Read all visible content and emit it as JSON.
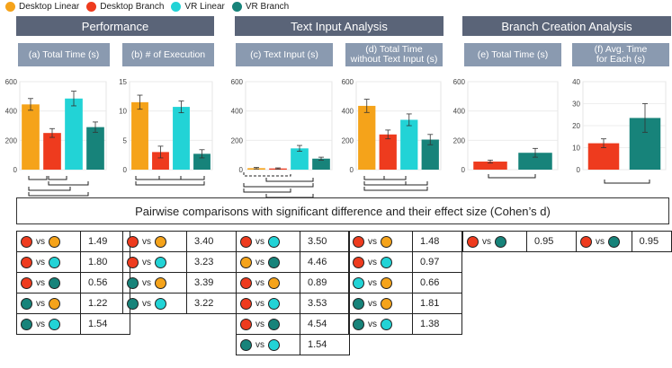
{
  "colors": {
    "desktop_linear": "#f5a31a",
    "desktop_branch": "#ee3b1e",
    "vr_linear": "#22d3d6",
    "vr_branch": "#17837a",
    "banner": "#5a6478",
    "panel_title": "#8a9ab0"
  },
  "legend": [
    {
      "label": "Desktop Linear",
      "color": "#f5a31a"
    },
    {
      "label": "Desktop Branch",
      "color": "#ee3b1e"
    },
    {
      "label": "VR Linear",
      "color": "#22d3d6"
    },
    {
      "label": "VR Branch",
      "color": "#17837a"
    }
  ],
  "groups": {
    "performance": "Performance",
    "text_input": "Text Input Analysis",
    "branch_creation": "Branch Creation Analysis"
  },
  "panels": {
    "a": "(a) Total Time (s)",
    "b": "(b) # of Execution",
    "c": "(c) Text Input (s)",
    "d_line1": "(d) Total Time",
    "d_line2": "without Text Input (s)",
    "e": "(e) Total Time (s)",
    "f_line1": "(f) Avg. Time",
    "f_line2": "for Each (s)"
  },
  "pairwise_title": "Pairwise comparisons with significant difference and their effect size (Cohen’s d)",
  "vs_label": "vs",
  "chart_data": [
    {
      "type": "bar",
      "title": "(a) Total Time (s)",
      "categories": [
        "Desktop Linear",
        "Desktop Branch",
        "VR Linear",
        "VR Branch"
      ],
      "values": [
        445,
        250,
        485,
        290
      ],
      "errors": [
        40,
        30,
        50,
        35
      ],
      "ylim": [
        0,
        600
      ],
      "yticks": [
        0,
        200,
        400,
        600
      ]
    },
    {
      "type": "bar",
      "title": "(b) # of Execution",
      "categories": [
        "Desktop Linear",
        "Desktop Branch",
        "VR Linear",
        "VR Branch"
      ],
      "values": [
        11.5,
        3,
        10.7,
        2.7
      ],
      "errors": [
        1.2,
        1.0,
        1.0,
        0.7
      ],
      "ylim": [
        0,
        15
      ],
      "yticks": [
        0,
        5,
        10,
        15
      ]
    },
    {
      "type": "bar",
      "title": "(c) Text Input (s)",
      "categories": [
        "Desktop Linear",
        "Desktop Branch",
        "VR Linear",
        "VR Branch"
      ],
      "values": [
        10,
        8,
        145,
        75
      ],
      "errors": [
        5,
        4,
        20,
        10
      ],
      "ylim": [
        0,
        600
      ],
      "yticks": [
        0,
        200,
        400,
        600
      ]
    },
    {
      "type": "bar",
      "title": "(d) Total Time without Text Input (s)",
      "categories": [
        "Desktop Linear",
        "Desktop Branch",
        "VR Linear",
        "VR Branch"
      ],
      "values": [
        435,
        240,
        340,
        205
      ],
      "errors": [
        45,
        30,
        40,
        35
      ],
      "ylim": [
        0,
        600
      ],
      "yticks": [
        0,
        200,
        400,
        600
      ]
    },
    {
      "type": "bar",
      "title": "(e) Total Time (s)",
      "categories": [
        "Desktop Branch",
        "VR Branch"
      ],
      "values": [
        55,
        115
      ],
      "errors": [
        10,
        30
      ],
      "ylim": [
        0,
        600
      ],
      "yticks": [
        0,
        200,
        400,
        600
      ]
    },
    {
      "type": "bar",
      "title": "(f) Avg. Time for Each (s)",
      "categories": [
        "Desktop Branch",
        "VR Branch"
      ],
      "values": [
        12,
        23.5
      ],
      "errors": [
        2,
        6.5
      ],
      "ylim": [
        0,
        40
      ],
      "yticks": [
        0,
        10,
        20,
        30,
        40
      ]
    }
  ],
  "tables": [
    {
      "rows": [
        {
          "a": "desktop_branch",
          "b": "desktop_linear",
          "d": "1.49"
        },
        {
          "a": "desktop_branch",
          "b": "vr_linear",
          "d": "1.80"
        },
        {
          "a": "desktop_branch",
          "b": "vr_branch",
          "d": "0.56"
        },
        {
          "a": "vr_branch",
          "b": "desktop_linear",
          "d": "1.22"
        },
        {
          "a": "vr_branch",
          "b": "vr_linear",
          "d": "1.54"
        }
      ]
    },
    {
      "rows": [
        {
          "a": "desktop_branch",
          "b": "desktop_linear",
          "d": "3.40"
        },
        {
          "a": "desktop_branch",
          "b": "vr_linear",
          "d": "3.23"
        },
        {
          "a": "vr_branch",
          "b": "desktop_linear",
          "d": "3.39"
        },
        {
          "a": "vr_branch",
          "b": "vr_linear",
          "d": "3.22"
        }
      ]
    },
    {
      "rows": [
        {
          "a": "desktop_branch",
          "b": "vr_linear",
          "d": "3.50"
        },
        {
          "a": "desktop_linear",
          "b": "vr_branch",
          "d": "4.46"
        },
        {
          "a": "desktop_branch",
          "b": "desktop_linear",
          "d": "0.89"
        },
        {
          "a": "desktop_branch",
          "b": "vr_linear",
          "d": "3.53"
        },
        {
          "a": "desktop_branch",
          "b": "vr_branch",
          "d": "4.54"
        },
        {
          "a": "vr_branch",
          "b": "vr_linear",
          "d": "1.54"
        }
      ]
    },
    {
      "rows": [
        {
          "a": "desktop_branch",
          "b": "desktop_linear",
          "d": "1.48"
        },
        {
          "a": "desktop_branch",
          "b": "vr_linear",
          "d": "0.97"
        },
        {
          "a": "vr_linear",
          "b": "desktop_linear",
          "d": "0.66"
        },
        {
          "a": "vr_branch",
          "b": "desktop_linear",
          "d": "1.81"
        },
        {
          "a": "vr_branch",
          "b": "vr_linear",
          "d": "1.38"
        }
      ]
    },
    {
      "rows": [
        {
          "a": "desktop_branch",
          "b": "vr_branch",
          "d": "0.95"
        }
      ]
    },
    {
      "rows": [
        {
          "a": "desktop_branch",
          "b": "vr_branch",
          "d": "0.95"
        }
      ]
    }
  ]
}
